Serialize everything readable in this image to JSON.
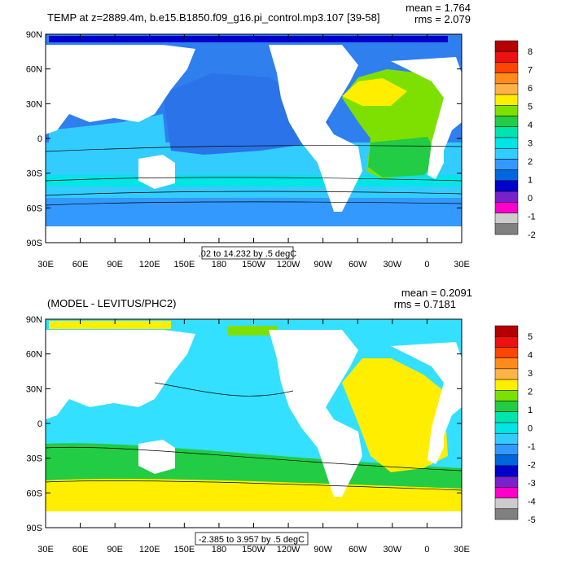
{
  "panels": [
    {
      "title": "TEMP at z=2889.4m, b.e15.B1850.f09_g16.pi_control.mp3.107 [39-58]",
      "stats": {
        "mean": "mean = 1.764",
        "rms": "rms = 2.079"
      },
      "range_label": ".02 to 14.232 by .5 degC",
      "ocean_base": "#2f7fef",
      "colorbar": {
        "labels": [
          "8",
          "7",
          "6",
          "5",
          "4",
          "3",
          "2",
          "1",
          "0",
          "-1",
          "-2"
        ],
        "colors": [
          "#b40000",
          "#ee1111",
          "#ff4400",
          "#ff8c1a",
          "#ffb347",
          "#ffee00",
          "#7ee000",
          "#22cc44",
          "#00e5b0",
          "#00e5e5",
          "#33ccff",
          "#3399ff",
          "#0066dd",
          "#0000cc",
          "#7722cc",
          "#ff00cc",
          "#cccccc",
          "#808080"
        ]
      }
    },
    {
      "title": "(MODEL - LEVITUS/PHC2)",
      "stats": {
        "mean": "mean = 0.2091",
        "rms": "rms = 0.7181"
      },
      "range_label": "-2.385 to 3.957 by .5 degC",
      "ocean_base": "#33e0ff",
      "colorbar": {
        "labels": [
          "5",
          "4",
          "3",
          "2",
          "1",
          "0",
          "-1",
          "-2",
          "-3",
          "-4",
          "-5"
        ],
        "colors": [
          "#b40000",
          "#ee1111",
          "#ff4400",
          "#ff8c1a",
          "#ffb347",
          "#ffee00",
          "#7ee000",
          "#22cc44",
          "#00e5b0",
          "#00e5e5",
          "#33ccff",
          "#3399ff",
          "#0066dd",
          "#0000cc",
          "#7722cc",
          "#ff00cc",
          "#cccccc",
          "#808080"
        ]
      }
    }
  ],
  "axes": {
    "lat_labels": [
      "90N",
      "60N",
      "30N",
      "0",
      "30S",
      "60S",
      "90S"
    ],
    "lon_labels": [
      "30E",
      "60E",
      "90E",
      "120E",
      "150E",
      "180",
      "150W",
      "120W",
      "90W",
      "60W",
      "30W",
      "0",
      "30E"
    ]
  },
  "chart_data": [
    {
      "type": "heatmap",
      "title": "TEMP at z=2889.4m, b.e15.B1850.f09_g16.pi_control.mp3.107 [39-58]",
      "mean": 1.764,
      "rms": 2.079,
      "contour_range": [
        0.02,
        14.232
      ],
      "contour_interval": 0.5,
      "unit": "degC",
      "x_range": [
        30,
        390
      ],
      "y_range": [
        -90,
        90
      ],
      "colorbar_levels": [
        -2,
        -1,
        0,
        1,
        2,
        3,
        4,
        5,
        6,
        7,
        8
      ]
    },
    {
      "type": "heatmap",
      "title": "(MODEL - LEVITUS/PHC2)",
      "mean": 0.2091,
      "rms": 0.7181,
      "contour_range": [
        -2.385,
        3.957
      ],
      "contour_interval": 0.5,
      "unit": "degC",
      "x_range": [
        30,
        390
      ],
      "y_range": [
        -90,
        90
      ],
      "colorbar_levels": [
        -5,
        -4,
        -3,
        -2,
        -1,
        0,
        1,
        2,
        3,
        4,
        5
      ]
    }
  ]
}
